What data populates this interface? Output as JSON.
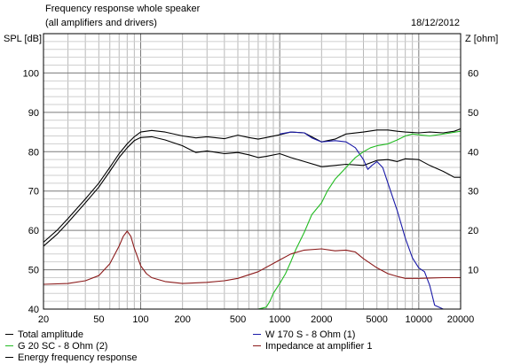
{
  "header": {
    "title": "Frequency response whole speaker",
    "subtitle": "(all amplifiers and drivers)",
    "date": "18/12/2012"
  },
  "chart_data": {
    "type": "line",
    "x_scale": "log",
    "xlim": [
      20,
      20000
    ],
    "x_ticks": [
      "20",
      "50",
      "100",
      "200",
      "500",
      "1000",
      "2000",
      "5000",
      "10000",
      "20000"
    ],
    "ylabel_left": "SPL [dB]",
    "ylim_left": [
      40,
      110
    ],
    "y_ticks_left": [
      "40",
      "50",
      "60",
      "70",
      "80",
      "90",
      "100"
    ],
    "ylabel_right": "Z [ohm]",
    "ylim_right": [
      0,
      70
    ],
    "y_ticks_right": [
      "10",
      "20",
      "30",
      "40",
      "50",
      "60"
    ],
    "grid": true,
    "legend_placement": "bottom",
    "series": [
      {
        "name": "Total amplitude",
        "color": "#000000",
        "axis": "left",
        "x": [
          20,
          25,
          30,
          40,
          50,
          60,
          70,
          80,
          90,
          100,
          120,
          150,
          200,
          250,
          300,
          400,
          500,
          600,
          700,
          800,
          1000,
          1200,
          1500,
          2000,
          2500,
          3000,
          4000,
          5000,
          6000,
          7000,
          8000,
          10000,
          12000,
          15000,
          18000,
          20000
        ],
        "y": [
          56,
          59,
          62,
          67,
          71,
          75,
          78.5,
          81,
          82.8,
          83.6,
          83.8,
          83,
          81.5,
          79.8,
          80.2,
          79.5,
          79.8,
          79.2,
          78.5,
          78.8,
          79.5,
          78.5,
          77.5,
          76.2,
          76.5,
          76.8,
          76.5,
          77.8,
          78,
          77.5,
          78.2,
          78,
          76.5,
          75,
          73.5,
          73.5
        ]
      },
      {
        "name": "Energy frequency response",
        "color": "#000000",
        "axis": "left",
        "x": [
          20,
          25,
          30,
          40,
          50,
          60,
          70,
          80,
          90,
          100,
          120,
          150,
          200,
          250,
          300,
          400,
          500,
          600,
          700,
          800,
          1000,
          1200,
          1500,
          2000,
          2500,
          3000,
          4000,
          5000,
          6000,
          7000,
          8000,
          10000,
          12000,
          15000,
          18000,
          20000
        ],
        "y": [
          57,
          60,
          63,
          68,
          72,
          76,
          79.5,
          82,
          83.8,
          85,
          85.4,
          85,
          84,
          83.5,
          83.8,
          83.3,
          84.2,
          83.6,
          83.2,
          83.6,
          84.3,
          85,
          84.8,
          82.5,
          83.2,
          84.5,
          85,
          85.5,
          85.5,
          85.2,
          85,
          84.8,
          85,
          84.8,
          85.2,
          85.8
        ]
      },
      {
        "name": "W 170 S - 8 Ohm (1)",
        "color": "#1a1aa8",
        "axis": "left",
        "x": [
          1000,
          1200,
          1500,
          1700,
          2000,
          2500,
          3000,
          3500,
          4000,
          4300,
          4600,
          5000,
          5500,
          6000,
          7000,
          8000,
          9000,
          10000,
          11000,
          12000,
          13000,
          15000,
          20000
        ],
        "y": [
          84.5,
          85,
          84.8,
          83.5,
          82.5,
          82.8,
          82.5,
          81,
          78,
          75.5,
          76.5,
          77.5,
          76,
          72,
          65,
          58,
          53,
          50.5,
          49.5,
          46,
          41,
          40,
          40
        ]
      },
      {
        "name": "G 20 SC - 8 Ohm (2)",
        "color": "#22bb22",
        "axis": "left",
        "x": [
          20,
          500,
          700,
          800,
          850,
          900,
          1000,
          1100,
          1200,
          1300,
          1500,
          1700,
          2000,
          2200,
          2500,
          3000,
          3500,
          4000,
          4500,
          5000,
          6000,
          7000,
          8000,
          9000,
          10000,
          12000,
          15000,
          20000
        ],
        "y": [
          40,
          40,
          40,
          40.5,
          42,
          44,
          46.5,
          49,
          52,
          55,
          59.5,
          64,
          67,
          70,
          73,
          76,
          78.5,
          80,
          81,
          81.5,
          82,
          83,
          84,
          84.5,
          84.3,
          84,
          84.5,
          85.2
        ]
      },
      {
        "name": "Impedance at amplifier 1",
        "color": "#8b1a1a",
        "axis": "right",
        "x": [
          20,
          30,
          40,
          50,
          60,
          70,
          75,
          80,
          85,
          90,
          100,
          110,
          120,
          150,
          200,
          300,
          400,
          500,
          700,
          1000,
          1200,
          1500,
          2000,
          2500,
          3000,
          3500,
          4000,
          5000,
          6000,
          7000,
          8000,
          10000,
          12000,
          15000,
          20000
        ],
        "y": [
          6.3,
          6.5,
          7.2,
          8.5,
          11.5,
          16,
          18.5,
          19.8,
          18.5,
          15.5,
          11,
          9,
          8,
          7,
          6.5,
          6.8,
          7.2,
          7.8,
          9.5,
          12.5,
          14,
          15,
          15.3,
          14.8,
          15,
          14.5,
          12.8,
          10.5,
          9,
          8.3,
          7.8,
          7.8,
          7.9,
          8,
          8
        ]
      }
    ]
  },
  "legend": [
    {
      "label": "Total amplitude",
      "color": "#000000"
    },
    {
      "label": "G 20 SC - 8 Ohm (2)",
      "color": "#22bb22"
    },
    {
      "label": "Energy frequency response",
      "color": "#000000"
    },
    {
      "label": "W 170 S - 8 Ohm (1)",
      "color": "#1a1aa8"
    },
    {
      "label": "Impedance at amplifier 1",
      "color": "#8b1a1a"
    }
  ]
}
